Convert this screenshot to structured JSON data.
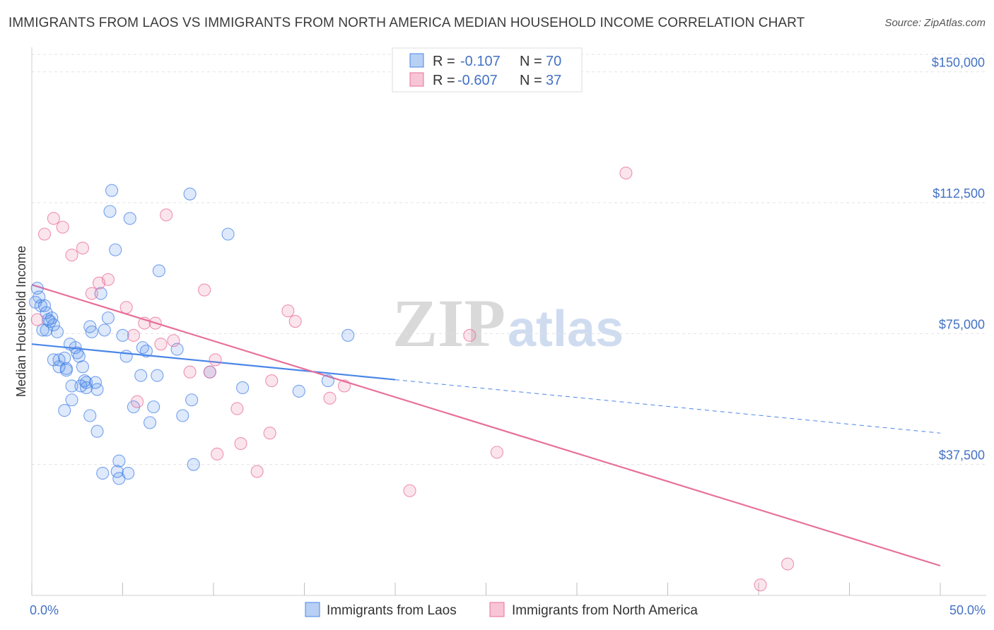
{
  "title": "IMMIGRANTS FROM LAOS VS IMMIGRANTS FROM NORTH AMERICA MEDIAN HOUSEHOLD INCOME CORRELATION CHART",
  "source": "Source: ZipAtlas.com",
  "watermark": {
    "zip": "ZIP",
    "atlas": "atlas"
  },
  "legend_top": {
    "rows": [
      {
        "r_label": "R =",
        "r_value": "-0.107",
        "n_label": "N =",
        "n_value": "70",
        "color": "#4a86e8"
      },
      {
        "r_label": "R =",
        "r_value": "-0.607",
        "n_label": "N =",
        "n_value": "37",
        "color": "#e8709a"
      }
    ]
  },
  "legend_bottom": [
    {
      "label": "Immigrants from Laos",
      "color": "#4a86e8"
    },
    {
      "label": "Immigrants from North America",
      "color": "#e8709a"
    }
  ],
  "chart_data": {
    "type": "scatter",
    "xlabel": "",
    "ylabel": "Median Household Income",
    "xlim": [
      0,
      50
    ],
    "ylim": [
      0,
      155000
    ],
    "x_tick_labels": [
      "0.0%",
      "50.0%"
    ],
    "y_ticks": [
      37500,
      75000,
      112500,
      150000
    ],
    "y_tick_labels": [
      "$37,500",
      "$75,000",
      "$112,500",
      "$150,000"
    ],
    "grid": true,
    "series": [
      {
        "name": "Immigrants from Laos",
        "color": "#4a86e8",
        "points": [
          [
            0.2,
            84000
          ],
          [
            0.3,
            88000
          ],
          [
            0.4,
            85500
          ],
          [
            0.5,
            83000
          ],
          [
            0.6,
            76000
          ],
          [
            0.7,
            83000
          ],
          [
            0.8,
            81000
          ],
          [
            0.8,
            76000
          ],
          [
            0.9,
            79000
          ],
          [
            1.0,
            78500
          ],
          [
            1.1,
            79500
          ],
          [
            1.2,
            77500
          ],
          [
            1.4,
            75500
          ],
          [
            1.2,
            67500
          ],
          [
            1.5,
            67500
          ],
          [
            1.5,
            65500
          ],
          [
            1.8,
            68000
          ],
          [
            1.9,
            65000
          ],
          [
            1.9,
            64500
          ],
          [
            2.1,
            72000
          ],
          [
            2.2,
            60000
          ],
          [
            2.2,
            56000
          ],
          [
            1.8,
            53000
          ],
          [
            2.4,
            71000
          ],
          [
            2.6,
            68500
          ],
          [
            2.5,
            69500
          ],
          [
            2.8,
            65500
          ],
          [
            2.7,
            60000
          ],
          [
            2.9,
            61500
          ],
          [
            3.0,
            61000
          ],
          [
            3.2,
            51500
          ],
          [
            3.2,
            77000
          ],
          [
            3.3,
            75500
          ],
          [
            3.5,
            61000
          ],
          [
            3.6,
            59000
          ],
          [
            3.6,
            47000
          ],
          [
            3.8,
            86500
          ],
          [
            4.0,
            76000
          ],
          [
            4.2,
            79500
          ],
          [
            4.3,
            110000
          ],
          [
            4.4,
            116000
          ],
          [
            4.6,
            99000
          ],
          [
            4.8,
            38500
          ],
          [
            4.8,
            33500
          ],
          [
            5.0,
            74500
          ],
          [
            5.2,
            68500
          ],
          [
            5.3,
            35000
          ],
          [
            5.4,
            108000
          ],
          [
            5.6,
            54000
          ],
          [
            6.0,
            63000
          ],
          [
            6.1,
            71000
          ],
          [
            6.3,
            70000
          ],
          [
            6.5,
            49500
          ],
          [
            6.7,
            54000
          ],
          [
            6.9,
            63000
          ],
          [
            7.0,
            93000
          ],
          [
            8.0,
            70500
          ],
          [
            8.3,
            51500
          ],
          [
            8.7,
            115000
          ],
          [
            8.8,
            56000
          ],
          [
            8.9,
            37500
          ],
          [
            9.8,
            64000
          ],
          [
            10.8,
            103500
          ],
          [
            11.6,
            59500
          ],
          [
            14.7,
            58500
          ],
          [
            16.3,
            61500
          ],
          [
            17.4,
            74500
          ],
          [
            3.0,
            59500
          ],
          [
            4.7,
            35500
          ],
          [
            3.9,
            35000
          ]
        ],
        "trend": {
          "x0": 0,
          "y0": 72000,
          "x_solid_end": 20,
          "x1": 50,
          "y1": 46500
        }
      },
      {
        "name": "Immigrants from North America",
        "color": "#e8709a",
        "points": [
          [
            0.3,
            79000
          ],
          [
            0.7,
            103500
          ],
          [
            1.2,
            108000
          ],
          [
            1.7,
            105500
          ],
          [
            2.2,
            97500
          ],
          [
            2.8,
            99500
          ],
          [
            3.3,
            86500
          ],
          [
            3.7,
            89500
          ],
          [
            4.2,
            90500
          ],
          [
            5.2,
            82500
          ],
          [
            5.6,
            74500
          ],
          [
            5.8,
            55500
          ],
          [
            6.2,
            78000
          ],
          [
            6.8,
            78000
          ],
          [
            7.1,
            72000
          ],
          [
            7.4,
            109000
          ],
          [
            7.8,
            73000
          ],
          [
            8.7,
            64000
          ],
          [
            9.5,
            87500
          ],
          [
            9.8,
            64000
          ],
          [
            10.1,
            67500
          ],
          [
            10.2,
            40500
          ],
          [
            11.3,
            53500
          ],
          [
            11.5,
            43500
          ],
          [
            12.4,
            35500
          ],
          [
            13.1,
            46500
          ],
          [
            13.2,
            61500
          ],
          [
            14.1,
            81500
          ],
          [
            14.5,
            78500
          ],
          [
            16.4,
            56500
          ],
          [
            17.2,
            60000
          ],
          [
            20.8,
            30000
          ],
          [
            24.1,
            74500
          ],
          [
            25.6,
            41000
          ],
          [
            32.7,
            121000
          ],
          [
            40.1,
            3000
          ],
          [
            41.6,
            9000
          ]
        ],
        "trend": {
          "x0": 0,
          "y0": 89000,
          "x_solid_end": 50,
          "x1": 50,
          "y1": 8500
        }
      }
    ]
  }
}
